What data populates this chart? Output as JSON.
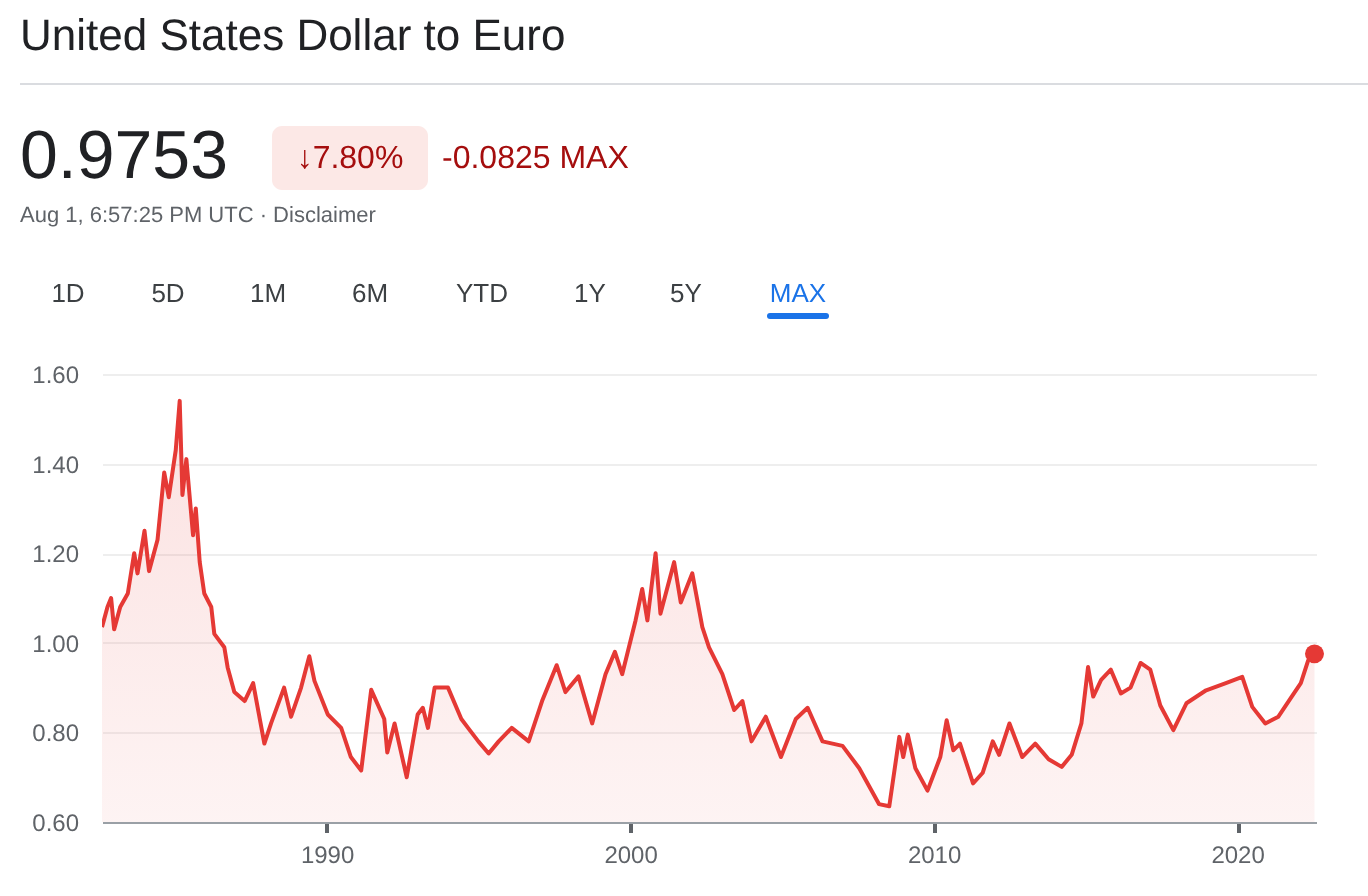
{
  "chart_data": {
    "type": "area",
    "title": "United States Dollar to Euro",
    "annotations": [
      "0.9753",
      "↓7.80%",
      "-0.0825 MAX",
      "Aug 1, 6:57:25 PM UTC · Disclaimer",
      "1D",
      "5D",
      "1M",
      "6M",
      "YTD",
      "1Y",
      "5Y",
      "MAX"
    ],
    "series": [
      {
        "color": "#e53935",
        "x": [
          1982.6,
          1982.78,
          1982.9,
          1983.0,
          1983.2,
          1983.45,
          1983.66,
          1983.77,
          1984.0,
          1984.15,
          1984.43,
          1984.65,
          1984.8,
          1985.03,
          1985.16,
          1985.25,
          1985.38,
          1985.6,
          1985.69,
          1985.82,
          1985.97,
          1986.2,
          1986.3,
          1986.63,
          1986.74,
          1986.96,
          1987.3,
          1987.58,
          1987.95,
          1988.17,
          1988.6,
          1988.83,
          1989.16,
          1989.43,
          1989.6,
          1990.04,
          1990.48,
          1990.8,
          1991.14,
          1991.47,
          1991.9,
          1992.0,
          1992.24,
          1992.64,
          1993.0,
          1993.17,
          1993.34,
          1993.56,
          1994.0,
          1994.44,
          1994.66,
          1995.0,
          1995.34,
          1995.67,
          1996.1,
          1996.66,
          1997.1,
          1997.58,
          1997.87,
          1998.3,
          1998.75,
          1999.19,
          1999.5,
          1999.74,
          2000.18,
          2000.4,
          2000.57,
          2000.84,
          2001.0,
          2001.45,
          2001.67,
          2002.05,
          2002.38,
          2002.6,
          2003.04,
          2003.43,
          2003.7,
          2004.0,
          2004.47,
          2004.97,
          2005.46,
          2005.85,
          2006.34,
          2007.0,
          2007.55,
          2008.2,
          2008.54,
          2008.87,
          2009.0,
          2009.15,
          2009.4,
          2009.8,
          2010.22,
          2010.43,
          2010.65,
          2010.87,
          2011.3,
          2011.62,
          2011.95,
          2012.16,
          2012.5,
          2012.92,
          2013.35,
          2013.79,
          2014.22,
          2014.55,
          2014.87,
          2015.09,
          2015.26,
          2015.52,
          2015.84,
          2016.17,
          2016.49,
          2016.82,
          2017.14,
          2017.47,
          2017.9,
          2018.33,
          2018.98,
          2019.63,
          2020.17,
          2020.5,
          2020.93,
          2021.36,
          2021.8,
          2022.1,
          2022.34,
          2022.55
        ],
        "values": [
          1.035,
          1.08,
          1.1,
          1.03,
          1.08,
          1.11,
          1.2,
          1.155,
          1.25,
          1.16,
          1.23,
          1.38,
          1.325,
          1.43,
          1.54,
          1.33,
          1.41,
          1.24,
          1.3,
          1.18,
          1.11,
          1.08,
          1.02,
          0.99,
          0.945,
          0.89,
          0.87,
          0.91,
          0.775,
          0.82,
          0.9,
          0.835,
          0.9,
          0.97,
          0.915,
          0.84,
          0.81,
          0.745,
          0.715,
          0.895,
          0.83,
          0.755,
          0.82,
          0.7,
          0.84,
          0.855,
          0.81,
          0.9,
          0.9,
          0.83,
          0.81,
          0.78,
          0.753,
          0.78,
          0.81,
          0.78,
          0.87,
          0.95,
          0.89,
          0.925,
          0.82,
          0.93,
          0.98,
          0.93,
          1.05,
          1.12,
          1.05,
          1.2,
          1.065,
          1.18,
          1.09,
          1.155,
          1.035,
          0.99,
          0.93,
          0.85,
          0.87,
          0.78,
          0.835,
          0.745,
          0.83,
          0.855,
          0.78,
          0.77,
          0.72,
          0.64,
          0.635,
          0.79,
          0.745,
          0.795,
          0.72,
          0.67,
          0.745,
          0.827,
          0.76,
          0.775,
          0.686,
          0.71,
          0.78,
          0.75,
          0.82,
          0.745,
          0.775,
          0.74,
          0.723,
          0.75,
          0.82,
          0.946,
          0.88,
          0.917,
          0.94,
          0.887,
          0.9,
          0.955,
          0.94,
          0.86,
          0.805,
          0.865,
          0.894,
          0.91,
          0.924,
          0.857,
          0.82,
          0.835,
          0.88,
          0.91,
          0.96,
          0.9753
        ]
      },
      {
        "type": "scatter",
        "color": "#e53935",
        "x": [
          2022.55
        ],
        "values": [
          0.9753
        ]
      }
    ],
    "xlim": [
      1982.6,
      2022.6
    ],
    "xticks": [
      1990,
      2000,
      2010,
      2020
    ],
    "ylim": [
      0.6,
      1.6
    ],
    "yticks": [
      {
        "value": 0.6,
        "label": "0.60"
      },
      {
        "value": 0.8,
        "label": "0.80"
      },
      {
        "value": 1.0,
        "label": "1.00"
      },
      {
        "value": 1.2,
        "label": "1.20"
      },
      {
        "value": 1.4,
        "label": "1.40"
      },
      {
        "value": 1.6,
        "label": "1.60"
      }
    ],
    "grid": "y"
  }
}
